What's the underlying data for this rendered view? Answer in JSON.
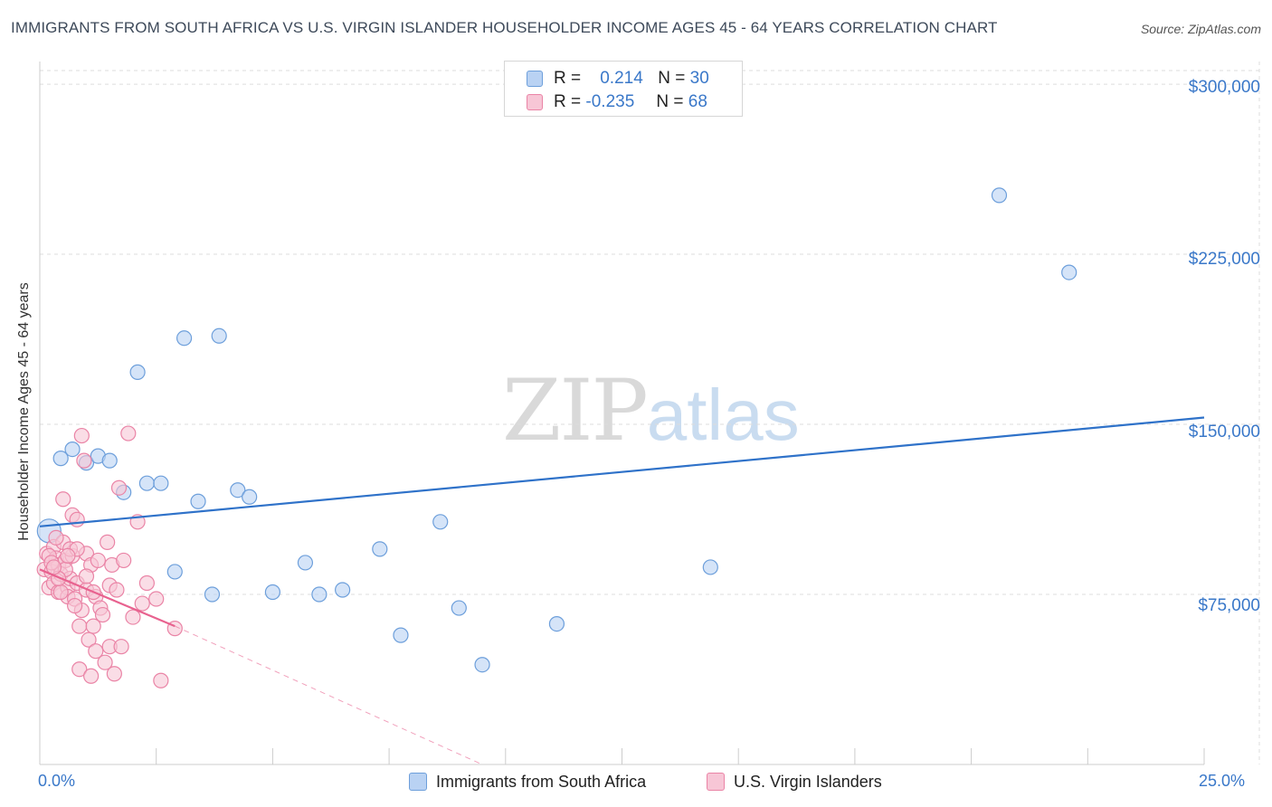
{
  "title": "IMMIGRANTS FROM SOUTH AFRICA VS U.S. VIRGIN ISLANDER HOUSEHOLDER INCOME AGES 45 - 64 YEARS CORRELATION CHART",
  "source": "Source: ZipAtlas.com",
  "watermark": {
    "zip": "ZIP",
    "atlas": "atlas"
  },
  "colors": {
    "blue_fill": "#b9d2f3",
    "blue_stroke": "#6d9fdb",
    "blue_line": "#2f72c9",
    "pink_fill": "#f7c6d6",
    "pink_stroke": "#ea84a6",
    "pink_line": "#e8628f",
    "grid": "#dddddd",
    "axis_text": "#3a78c9"
  },
  "legend": {
    "rows": [
      {
        "r_label": "R =",
        "r_value": "0.214",
        "n_label": "N =",
        "n_value": "30"
      },
      {
        "r_label": "R =",
        "r_value": "-0.235",
        "n_label": "N =",
        "n_value": "68"
      }
    ]
  },
  "chart_data": {
    "type": "scatter",
    "title": "IMMIGRANTS FROM SOUTH AFRICA VS U.S. VIRGIN ISLANDER HOUSEHOLDER INCOME AGES 45 - 64 YEARS CORRELATION CHART",
    "xlabel": "",
    "ylabel": "Householder Income Ages 45 - 64 years",
    "xlim": [
      0,
      25
    ],
    "ylim": [
      0,
      310000
    ],
    "x_tick_labels": [
      "0.0%",
      "25.0%"
    ],
    "y_ticks": [
      75000,
      150000,
      225000,
      300000
    ],
    "y_tick_labels": [
      "$75,000",
      "$150,000",
      "$225,000",
      "$300,000"
    ],
    "grid": true,
    "series": [
      {
        "name": "Immigrants from South Africa",
        "r": 0.214,
        "n": 30,
        "trend": {
          "x": [
            0,
            25
          ],
          "y": [
            105000,
            153000
          ]
        },
        "points": [
          {
            "x": 0.2,
            "y": 103000
          },
          {
            "x": 0.45,
            "y": 135000
          },
          {
            "x": 0.7,
            "y": 139000
          },
          {
            "x": 1.0,
            "y": 133000
          },
          {
            "x": 1.25,
            "y": 136000
          },
          {
            "x": 1.5,
            "y": 134000
          },
          {
            "x": 1.8,
            "y": 120000
          },
          {
            "x": 2.1,
            "y": 173000
          },
          {
            "x": 2.3,
            "y": 124000
          },
          {
            "x": 2.6,
            "y": 124000
          },
          {
            "x": 2.9,
            "y": 85000
          },
          {
            "x": 3.1,
            "y": 188000
          },
          {
            "x": 3.4,
            "y": 116000
          },
          {
            "x": 3.7,
            "y": 75000
          },
          {
            "x": 3.85,
            "y": 189000
          },
          {
            "x": 4.25,
            "y": 121000
          },
          {
            "x": 4.5,
            "y": 118000
          },
          {
            "x": 5.0,
            "y": 76000
          },
          {
            "x": 5.7,
            "y": 89000
          },
          {
            "x": 6.0,
            "y": 75000
          },
          {
            "x": 6.5,
            "y": 77000
          },
          {
            "x": 7.3,
            "y": 95000
          },
          {
            "x": 7.75,
            "y": 57000
          },
          {
            "x": 8.6,
            "y": 107000
          },
          {
            "x": 9.0,
            "y": 69000
          },
          {
            "x": 9.5,
            "y": 44000
          },
          {
            "x": 11.1,
            "y": 62000
          },
          {
            "x": 14.4,
            "y": 87000
          },
          {
            "x": 20.6,
            "y": 251000
          },
          {
            "x": 22.1,
            "y": 217000
          }
        ]
      },
      {
        "name": "U.S. Virgin Islanders",
        "r": -0.235,
        "n": 68,
        "trend": {
          "x": [
            0,
            2.9
          ],
          "y": [
            86000,
            61000
          ]
        },
        "trend_extended": {
          "x": [
            2.9,
            9.5
          ],
          "y": [
            61000,
            0
          ]
        },
        "points": [
          {
            "x": 0.1,
            "y": 86000
          },
          {
            "x": 0.15,
            "y": 93000
          },
          {
            "x": 0.2,
            "y": 78000
          },
          {
            "x": 0.25,
            "y": 85000
          },
          {
            "x": 0.3,
            "y": 96000
          },
          {
            "x": 0.3,
            "y": 80000
          },
          {
            "x": 0.35,
            "y": 91000
          },
          {
            "x": 0.4,
            "y": 88000
          },
          {
            "x": 0.4,
            "y": 76000
          },
          {
            "x": 0.45,
            "y": 84000
          },
          {
            "x": 0.5,
            "y": 98000
          },
          {
            "x": 0.5,
            "y": 117000
          },
          {
            "x": 0.55,
            "y": 90000
          },
          {
            "x": 0.6,
            "y": 78000
          },
          {
            "x": 0.6,
            "y": 74000
          },
          {
            "x": 0.65,
            "y": 82000
          },
          {
            "x": 0.7,
            "y": 92000
          },
          {
            "x": 0.7,
            "y": 110000
          },
          {
            "x": 0.75,
            "y": 73000
          },
          {
            "x": 0.8,
            "y": 80000
          },
          {
            "x": 0.8,
            "y": 108000
          },
          {
            "x": 0.85,
            "y": 61000
          },
          {
            "x": 0.85,
            "y": 42000
          },
          {
            "x": 0.9,
            "y": 145000
          },
          {
            "x": 0.9,
            "y": 68000
          },
          {
            "x": 0.95,
            "y": 134000
          },
          {
            "x": 1.0,
            "y": 77000
          },
          {
            "x": 1.0,
            "y": 93000
          },
          {
            "x": 1.05,
            "y": 55000
          },
          {
            "x": 1.1,
            "y": 39000
          },
          {
            "x": 1.1,
            "y": 88000
          },
          {
            "x": 1.15,
            "y": 61000
          },
          {
            "x": 1.2,
            "y": 74000
          },
          {
            "x": 1.2,
            "y": 50000
          },
          {
            "x": 1.25,
            "y": 90000
          },
          {
            "x": 1.3,
            "y": 69000
          },
          {
            "x": 1.35,
            "y": 66000
          },
          {
            "x": 1.4,
            "y": 45000
          },
          {
            "x": 1.45,
            "y": 98000
          },
          {
            "x": 1.5,
            "y": 52000
          },
          {
            "x": 1.5,
            "y": 79000
          },
          {
            "x": 1.55,
            "y": 88000
          },
          {
            "x": 1.6,
            "y": 40000
          },
          {
            "x": 1.65,
            "y": 77000
          },
          {
            "x": 1.7,
            "y": 122000
          },
          {
            "x": 1.75,
            "y": 52000
          },
          {
            "x": 1.8,
            "y": 90000
          },
          {
            "x": 1.9,
            "y": 146000
          },
          {
            "x": 2.0,
            "y": 65000
          },
          {
            "x": 2.1,
            "y": 107000
          },
          {
            "x": 2.2,
            "y": 71000
          },
          {
            "x": 2.3,
            "y": 80000
          },
          {
            "x": 2.5,
            "y": 73000
          },
          {
            "x": 2.6,
            "y": 37000
          },
          {
            "x": 2.9,
            "y": 60000
          },
          {
            "x": 0.2,
            "y": 92000
          },
          {
            "x": 0.35,
            "y": 100000
          },
          {
            "x": 0.55,
            "y": 86000
          },
          {
            "x": 0.65,
            "y": 95000
          },
          {
            "x": 0.75,
            "y": 70000
          },
          {
            "x": 0.45,
            "y": 76000
          },
          {
            "x": 0.25,
            "y": 89000
          },
          {
            "x": 1.0,
            "y": 83000
          },
          {
            "x": 0.8,
            "y": 95000
          },
          {
            "x": 0.6,
            "y": 92000
          },
          {
            "x": 0.4,
            "y": 82000
          },
          {
            "x": 0.3,
            "y": 87000
          },
          {
            "x": 1.15,
            "y": 76000
          }
        ]
      }
    ]
  },
  "bottom_legend": [
    {
      "label": "Immigrants from South Africa"
    },
    {
      "label": "U.S. Virgin Islanders"
    }
  ]
}
